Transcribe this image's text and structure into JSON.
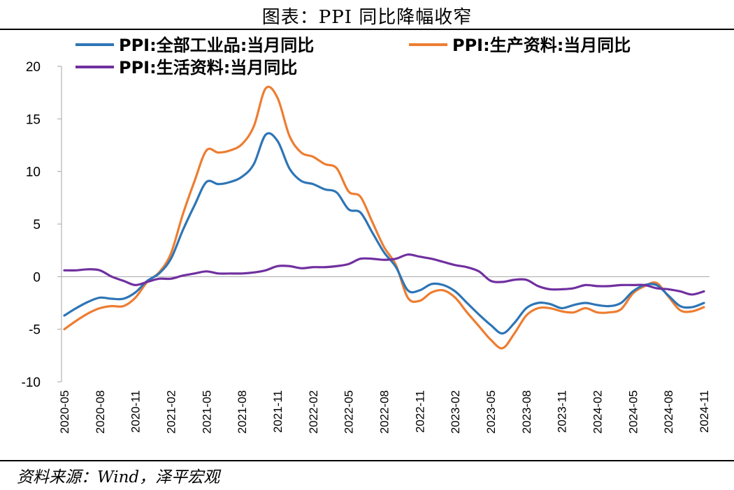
{
  "header": {
    "title": "图表：PPI 同比降幅收窄"
  },
  "footer": {
    "source": "资料来源：Wind，泽平宏观"
  },
  "chart_data": {
    "type": "line",
    "ylim": [
      -10,
      20
    ],
    "yticks": [
      -10,
      -5,
      0,
      5,
      10,
      15,
      20
    ],
    "grid": false,
    "legend_position": "top",
    "xtick_labels": [
      "2020-05",
      "2020-08",
      "2020-11",
      "2021-02",
      "2021-05",
      "2021-08",
      "2021-11",
      "2022-02",
      "2022-05",
      "2022-08",
      "2022-11",
      "2023-02",
      "2023-05",
      "2023-08",
      "2023-11",
      "2024-02",
      "2024-05",
      "2024-08",
      "2024-11"
    ],
    "x": [
      "2020-05",
      "2020-06",
      "2020-07",
      "2020-08",
      "2020-09",
      "2020-10",
      "2020-11",
      "2020-12",
      "2021-01",
      "2021-02",
      "2021-03",
      "2021-04",
      "2021-05",
      "2021-06",
      "2021-07",
      "2021-08",
      "2021-09",
      "2021-10",
      "2021-11",
      "2021-12",
      "2022-01",
      "2022-02",
      "2022-03",
      "2022-04",
      "2022-05",
      "2022-06",
      "2022-07",
      "2022-08",
      "2022-09",
      "2022-10",
      "2022-11",
      "2022-12",
      "2023-01",
      "2023-02",
      "2023-03",
      "2023-04",
      "2023-05",
      "2023-06",
      "2023-07",
      "2023-08",
      "2023-09",
      "2023-10",
      "2023-11",
      "2023-12",
      "2024-01",
      "2024-02",
      "2024-03",
      "2024-04",
      "2024-05",
      "2024-06",
      "2024-07",
      "2024-08",
      "2024-09",
      "2024-10",
      "2024-11"
    ],
    "series": [
      {
        "name": "PPI:全部工业品:当月同比",
        "color": "#2E75B6",
        "values": [
          -3.7,
          -3.0,
          -2.4,
          -2.0,
          -2.1,
          -2.1,
          -1.5,
          -0.4,
          0.3,
          1.7,
          4.4,
          6.8,
          9.0,
          8.8,
          9.0,
          9.5,
          10.7,
          13.5,
          12.9,
          10.3,
          9.1,
          8.8,
          8.3,
          8.0,
          6.4,
          6.1,
          4.2,
          2.3,
          0.9,
          -1.3,
          -1.3,
          -0.7,
          -0.8,
          -1.4,
          -2.5,
          -3.6,
          -4.6,
          -5.4,
          -4.4,
          -3.0,
          -2.5,
          -2.6,
          -3.0,
          -2.7,
          -2.5,
          -2.7,
          -2.8,
          -2.5,
          -1.4,
          -0.8,
          -0.8,
          -1.8,
          -2.8,
          -2.9,
          -2.5
        ]
      },
      {
        "name": "PPI:生产资料:当月同比",
        "color": "#ED7D31",
        "values": [
          -5.0,
          -4.2,
          -3.5,
          -3.0,
          -2.8,
          -2.8,
          -2.0,
          -0.5,
          0.4,
          2.2,
          5.9,
          9.1,
          12.0,
          11.8,
          12.0,
          12.6,
          14.3,
          17.9,
          17.0,
          13.4,
          11.8,
          11.4,
          10.7,
          10.3,
          8.1,
          7.6,
          5.2,
          2.8,
          1.1,
          -2.0,
          -2.3,
          -1.5,
          -1.3,
          -2.0,
          -3.4,
          -4.7,
          -6.0,
          -6.8,
          -5.4,
          -3.7,
          -3.0,
          -3.0,
          -3.3,
          -3.4,
          -3.0,
          -3.4,
          -3.4,
          -3.1,
          -1.6,
          -0.9,
          -0.6,
          -1.9,
          -3.2,
          -3.3,
          -2.9
        ]
      },
      {
        "name": "PPI:生活资料:当月同比",
        "color": "#7030A0",
        "values": [
          0.6,
          0.6,
          0.7,
          0.6,
          0.0,
          -0.4,
          -0.8,
          -0.5,
          -0.2,
          -0.2,
          0.1,
          0.3,
          0.5,
          0.3,
          0.3,
          0.3,
          0.4,
          0.6,
          1.0,
          1.0,
          0.8,
          0.9,
          0.9,
          1.0,
          1.2,
          1.7,
          1.7,
          1.6,
          1.7,
          2.1,
          1.9,
          1.7,
          1.4,
          1.1,
          0.9,
          0.5,
          -0.4,
          -0.5,
          -0.3,
          -0.3,
          -0.9,
          -1.2,
          -1.2,
          -1.1,
          -0.8,
          -0.9,
          -0.9,
          -0.8,
          -0.8,
          -0.8,
          -1.1,
          -1.2,
          -1.4,
          -1.7,
          -1.4
        ]
      }
    ]
  }
}
